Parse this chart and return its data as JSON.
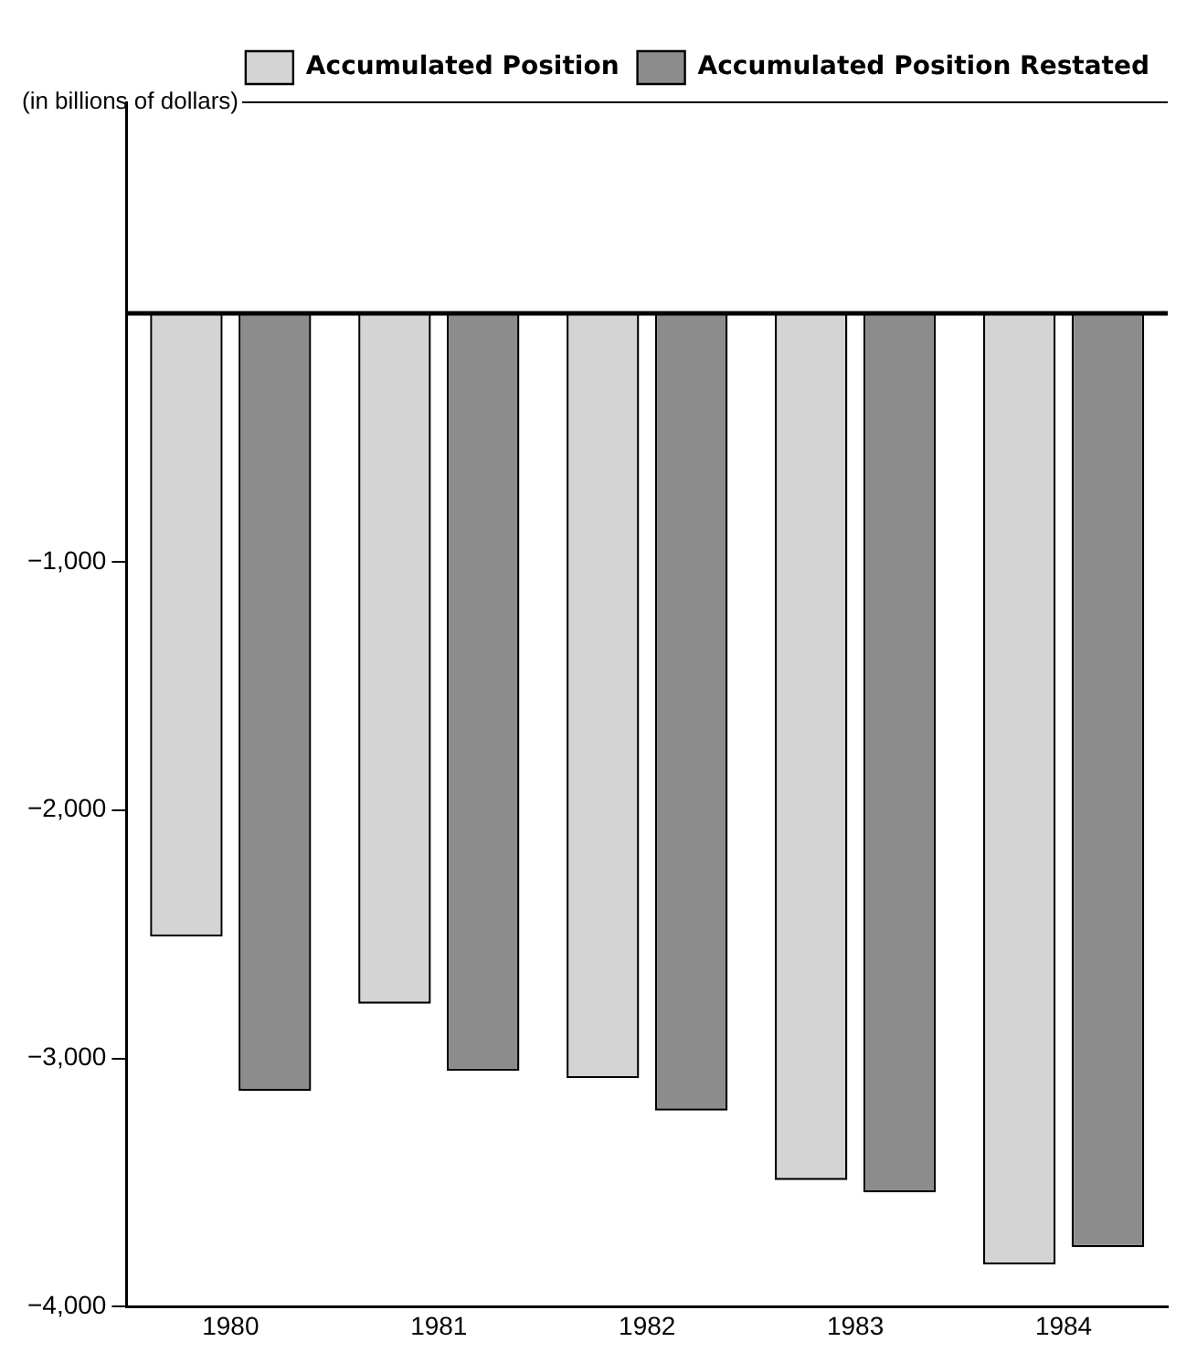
{
  "chart_data": {
    "type": "bar",
    "ylabel": "(in billions of dollars)",
    "categories": [
      "1980",
      "1981",
      "1982",
      "1983",
      "1984"
    ],
    "series": [
      {
        "name": "Accumulated Position",
        "color": "#d4d4d4",
        "values": [
          -2510,
          -2780,
          -3080,
          -3490,
          -3830
        ]
      },
      {
        "name": "Accumulated Position Restated",
        "color": "#8c8c8c",
        "values": [
          -3130,
          -3050,
          -3210,
          -3540,
          -3760
        ]
      }
    ],
    "ylim": [
      -4000,
      850
    ],
    "yticks": [
      {
        "value": -4000,
        "label": "−4,000"
      },
      {
        "value": -3000,
        "label": "−3,000"
      },
      {
        "value": -2000,
        "label": "−2,000"
      },
      {
        "value": -1000,
        "label": "−1,000"
      }
    ],
    "ref_lines": [
      {
        "axis": "y",
        "value": 0,
        "color": "#000000"
      }
    ],
    "grid": false,
    "legend": "top right"
  }
}
